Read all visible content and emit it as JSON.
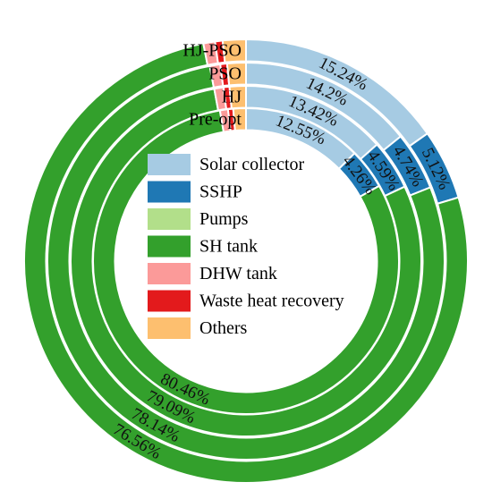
{
  "chart_data": {
    "type": "donut",
    "categories": [
      "Solar collector",
      "SSHP",
      "Pumps",
      "SH tank",
      "DHW tank",
      "Waste heat recovery",
      "Others"
    ],
    "colors": {
      "Solar collector": "#a6cbe3",
      "SSHP": "#1f78b4",
      "Pumps": "#b2df8a",
      "SH tank": "#33a02c",
      "DHW tank": "#fb9a99",
      "Waste heat recovery": "#e31a1c",
      "Others": "#fdbf6f"
    },
    "series": [
      {
        "name": "HJ-PSO",
        "values": {
          "Solar collector": 15.24,
          "SSHP": 5.12,
          "Pumps": 0.0,
          "SH tank": 76.56,
          "DHW tank": 0.85,
          "Waste heat recovery": 0.55,
          "Others": 1.68
        },
        "labels": {
          "Solar collector": "15.24%",
          "SSHP": "5.12%",
          "SH tank": "76.56%"
        }
      },
      {
        "name": "PSO",
        "values": {
          "Solar collector": 14.2,
          "SSHP": 4.74,
          "Pumps": 0.0,
          "SH tank": 78.14,
          "DHW tank": 0.85,
          "Waste heat recovery": 0.55,
          "Others": 1.52
        },
        "labels": {
          "Solar collector": "14.2%",
          "SSHP": "4.74%",
          "SH tank": "78.14%"
        }
      },
      {
        "name": "HJ",
        "values": {
          "Solar collector": 13.42,
          "SSHP": 4.59,
          "Pumps": 0.0,
          "SH tank": 79.09,
          "DHW tank": 0.85,
          "Waste heat recovery": 0.55,
          "Others": 1.5
        },
        "labels": {
          "Solar collector": "13.42%",
          "SSHP": "4.59%",
          "SH tank": "79.09%"
        }
      },
      {
        "name": "Pre-opt",
        "values": {
          "Solar collector": 12.55,
          "SSHP": 4.26,
          "Pumps": 0.0,
          "SH tank": 80.46,
          "DHW tank": 0.85,
          "Waste heat recovery": 0.55,
          "Others": 1.33
        },
        "labels": {
          "Solar collector": "12.55%",
          "SSHP": "4.26%",
          "SH tank": "80.46%"
        }
      }
    ],
    "legend": [
      "Solar collector",
      "SSHP",
      "Pumps",
      "SH tank",
      "DHW tank",
      "Waste heat recovery",
      "Others"
    ],
    "legend_placement": "center"
  }
}
